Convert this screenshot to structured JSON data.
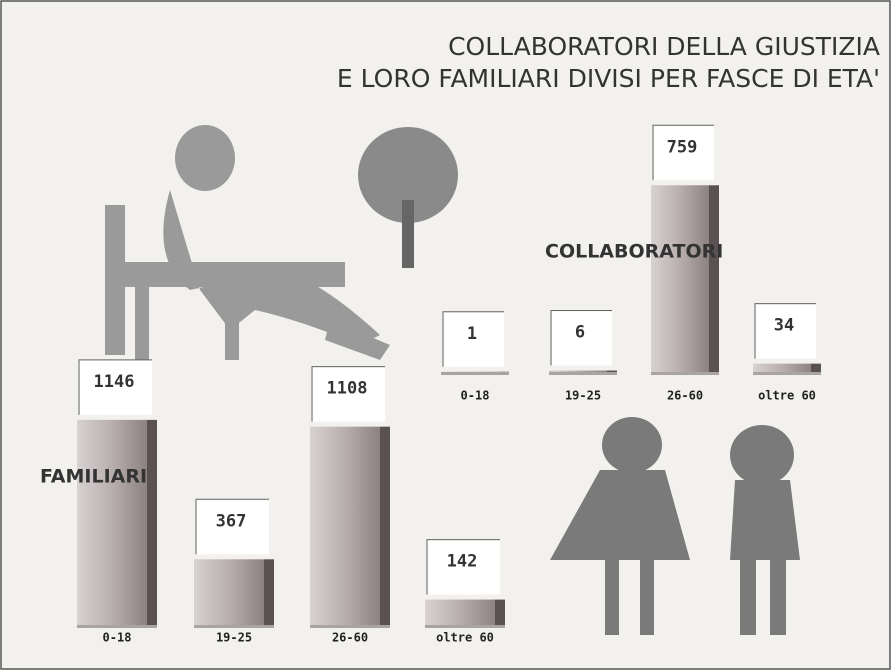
{
  "header": {
    "title_lines": [
      "COLLABORATORI DELLA GIUSTIZIA",
      "E LORO FAMILIARI DIVISI PER FASCE DI ETA'"
    ]
  },
  "chart_data": [
    {
      "type": "bar",
      "title": "COLLABORATORI",
      "categories": [
        "0-18",
        "19-25",
        "26-60",
        "oltre 60"
      ],
      "values": [
        1,
        6,
        759,
        34
      ],
      "color": "#a9a3a3"
    },
    {
      "type": "bar",
      "title": "FAMILIARI",
      "categories": [
        "0-18",
        "19-25",
        "26-60",
        "oltre 60"
      ],
      "values": [
        1146,
        367,
        1108,
        142
      ],
      "color": "#a9a3a3"
    }
  ]
}
